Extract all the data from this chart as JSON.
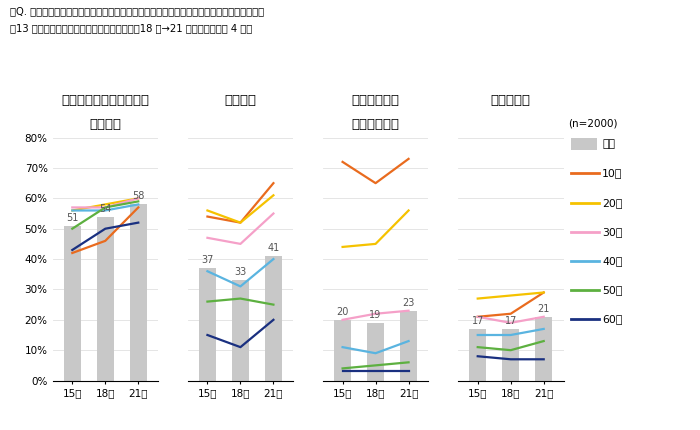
{
  "title_line1": "「Q. あなたは、スキンケア化粧品（基礎化粧品）にどのような効果を期待していますか。」",
  "title_line2": "〃13 の選択肢を提示（複数回答）したうち、18 冬→21 冬での増加上位 4 項目",
  "n_label": "(n=2000)",
  "categories": [
    "15冬",
    "18冬",
    "21冬"
  ],
  "panel_titles": [
    [
      "美白・ホワイトニング・",
      "しみ対策"
    ],
    [
      "毛穴ケア",
      ""
    ],
    [
      "ニキビ対策・",
      "アクネ菌抑制"
    ],
    [
      "敏感肌対策",
      ""
    ]
  ],
  "bar_values": [
    [
      51,
      54,
      58
    ],
    [
      37,
      33,
      41
    ],
    [
      20,
      19,
      23
    ],
    [
      17,
      17,
      21
    ]
  ],
  "lines": {
    "10代": {
      "color": "#e96b1e",
      "data": [
        [
          42,
          46,
          57
        ],
        [
          54,
          52,
          65
        ],
        [
          72,
          65,
          73
        ],
        [
          21,
          22,
          29
        ]
      ]
    },
    "20代": {
      "color": "#f5c200",
      "data": [
        [
          56,
          58,
          60
        ],
        [
          56,
          52,
          61
        ],
        [
          44,
          45,
          56
        ],
        [
          27,
          28,
          29
        ]
      ]
    },
    "30代": {
      "color": "#f5a0c8",
      "data": [
        [
          57,
          57,
          60
        ],
        [
          47,
          45,
          55
        ],
        [
          20,
          22,
          23
        ],
        [
          21,
          19,
          21
        ]
      ]
    },
    "40代": {
      "color": "#5ab4e0",
      "data": [
        [
          56,
          56,
          58
        ],
        [
          36,
          31,
          40
        ],
        [
          11,
          9,
          13
        ],
        [
          15,
          15,
          17
        ]
      ]
    },
    "50代": {
      "color": "#5db040",
      "data": [
        [
          50,
          57,
          59
        ],
        [
          26,
          27,
          25
        ],
        [
          4,
          5,
          6
        ],
        [
          11,
          10,
          13
        ]
      ]
    },
    "60代": {
      "color": "#1a3080",
      "data": [
        [
          43,
          50,
          52
        ],
        [
          15,
          11,
          20
        ],
        [
          3,
          3,
          3
        ],
        [
          8,
          7,
          7
        ]
      ]
    }
  },
  "ylim": [
    0,
    80
  ],
  "yticks": [
    0,
    10,
    20,
    30,
    40,
    50,
    60,
    70,
    80
  ],
  "bar_color": "#c8c8c8",
  "background_color": "#ffffff",
  "bar_label_color": "#555555",
  "grid_color": "#e0e0e0"
}
